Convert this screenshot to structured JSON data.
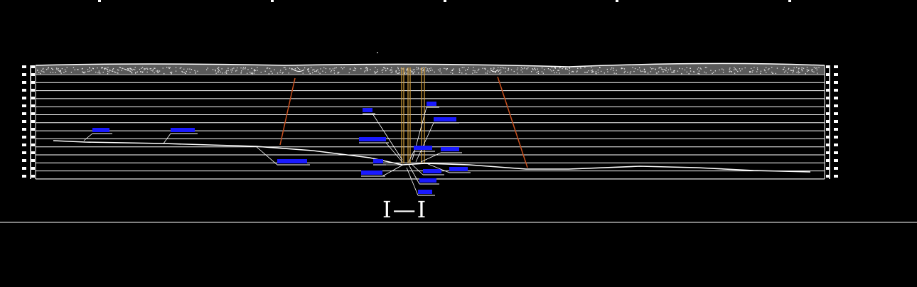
{
  "drawing": {
    "section_title": "I—I",
    "colors": {
      "background": "#000000",
      "lines": "#ffffff",
      "callouts": "#0000ff",
      "slope": "#c8501e",
      "well": "#d9a23a"
    },
    "callout_icons": "blue-label-block"
  }
}
